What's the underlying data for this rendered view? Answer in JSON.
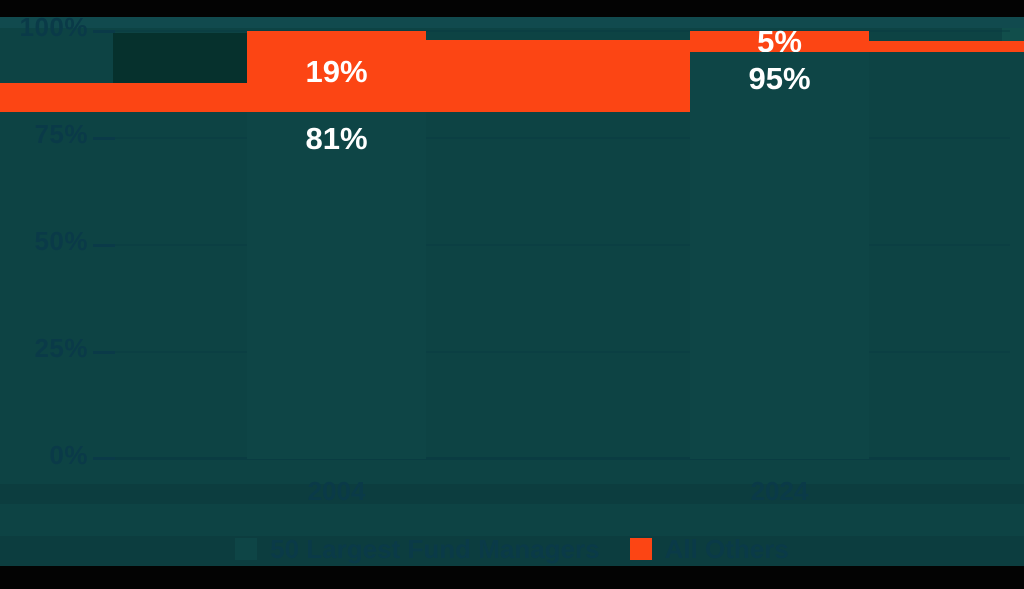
{
  "colors": {
    "background_teal": "#0D4344",
    "bar_teal": "#0E4546",
    "orange": "#FC4514",
    "axis_label_text": "#0A3A48",
    "value_label_text": "#FFFFFF",
    "black_strip": "#030303"
  },
  "chart_data": {
    "type": "bar",
    "variant": "100%-stacked-column",
    "categories": [
      "2004",
      "2024"
    ],
    "series": [
      {
        "name": "50 Largest Fund Managers",
        "color": "#0E4546",
        "values": [
          81,
          95
        ],
        "labels": [
          "81%",
          "95%"
        ]
      },
      {
        "name": "All Others",
        "color": "#FC4514",
        "values": [
          19,
          5
        ],
        "labels": [
          "19%",
          "5%"
        ]
      }
    ],
    "y_ticks": [
      "100%",
      "75%",
      "50%",
      "25%",
      "0%"
    ],
    "y_tick_values": [
      100,
      75,
      50,
      25,
      0
    ],
    "ylim": [
      0,
      100
    ],
    "value_label_format": "{v}%",
    "grid": "on",
    "legend_position": "bottom"
  }
}
